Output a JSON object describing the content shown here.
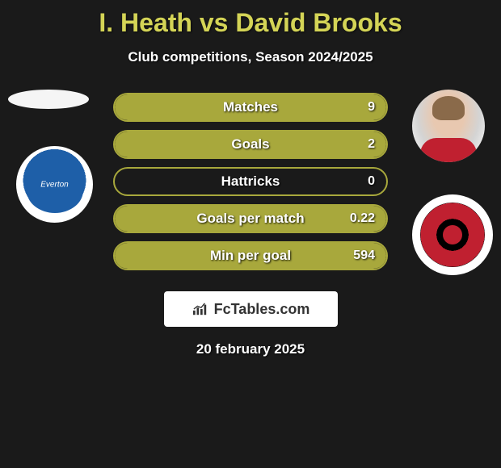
{
  "title": "I. Heath vs David Brooks",
  "subtitle": "Club competitions, Season 2024/2025",
  "date": "20 february 2025",
  "logo_text": "FcTables.com",
  "left_club_label": "Everton",
  "colors": {
    "accent": "#a8a83c",
    "title": "#d4d456",
    "bg": "#1a1a1a",
    "everton": "#1e5fa8",
    "bournemouth_red": "#c02030"
  },
  "stats": [
    {
      "label": "Matches",
      "right_val": "9",
      "right_fill_pct": 100
    },
    {
      "label": "Goals",
      "right_val": "2",
      "right_fill_pct": 100
    },
    {
      "label": "Hattricks",
      "right_val": "0",
      "right_fill_pct": 0
    },
    {
      "label": "Goals per match",
      "right_val": "0.22",
      "right_fill_pct": 100
    },
    {
      "label": "Min per goal",
      "right_val": "594",
      "right_fill_pct": 100
    }
  ]
}
